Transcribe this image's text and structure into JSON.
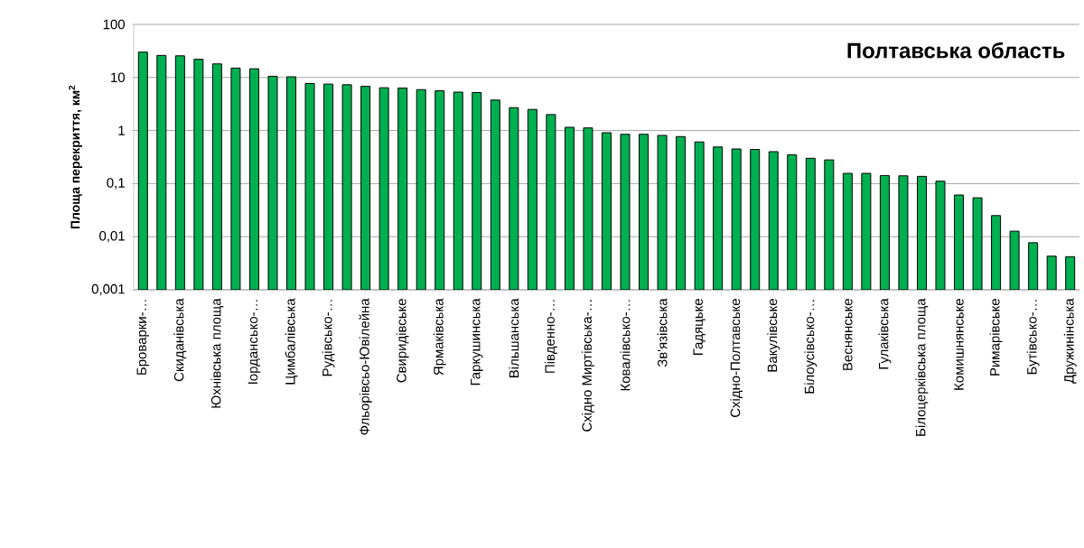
{
  "chart_data": {
    "type": "bar",
    "title": "Полтавська область",
    "ylabel": "Площа перекриття, км$^{2}$",
    "categories": [
      "Броварки-…",
      null,
      "Скиданівська",
      null,
      "Юхнівська площа",
      null,
      "Іордансько-…",
      null,
      "Цимбалівська",
      null,
      "Рудівсько-…",
      null,
      "Фльорівсьо-Ювілейна",
      null,
      "Свиридівське",
      null,
      "Ярмаківська",
      null,
      "Гаркушинська",
      null,
      "Вільшанська",
      null,
      "Південно-…",
      null,
      "Східно Миртівська-…",
      null,
      "Ковалівсько-…",
      null,
      "Зв'язівська",
      null,
      "Гадяцьке",
      null,
      "Східно-Полтавське",
      null,
      "Вакулівське",
      null,
      "Білоусівсько-…",
      null,
      "Веснянське",
      null,
      "Гулаківська",
      null,
      "Білоцерківська площа",
      null,
      "Комишнянське",
      null,
      "Римарівське",
      null,
      "Бутівсько-…",
      null,
      "Дружинінська"
    ],
    "values": [
      30,
      26,
      25.6,
      22,
      18,
      15,
      14.6,
      10.5,
      10.3,
      7.7,
      7.5,
      7.3,
      6.8,
      6.4,
      6.3,
      5.9,
      5.6,
      5.3,
      5.2,
      3.75,
      2.7,
      2.5,
      2.0,
      1.15,
      1.12,
      0.91,
      0.85,
      0.85,
      0.81,
      0.77,
      0.61,
      0.49,
      0.45,
      0.44,
      0.4,
      0.35,
      0.3,
      0.28,
      0.156,
      0.156,
      0.142,
      0.14,
      0.137,
      0.111,
      0.061,
      0.054,
      0.025,
      0.0127,
      0.0077,
      0.0043,
      0.0042
    ],
    "color": "#00b050",
    "log": true,
    "grid": "y",
    "ylim": [
      0.001,
      100
    ],
    "yticks": [
      {
        "value": 0.001,
        "label": "0,001"
      },
      {
        "value": 0.01,
        "label": "0,01"
      },
      {
        "value": 0.1,
        "label": "0,1"
      },
      1,
      10,
      100
    ]
  }
}
